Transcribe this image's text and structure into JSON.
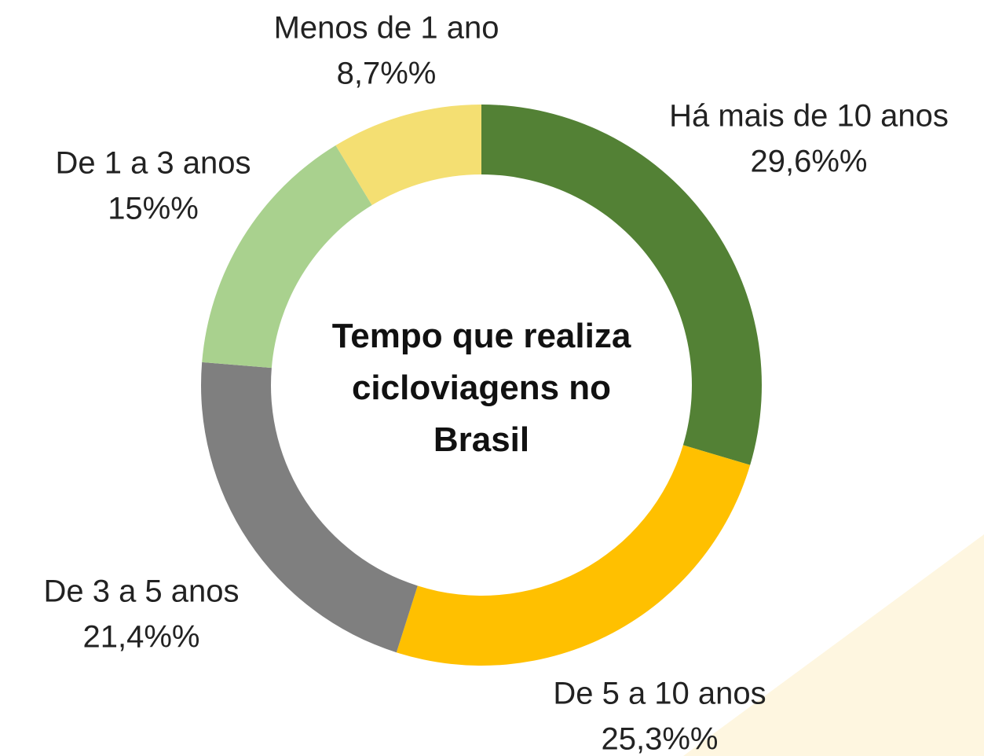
{
  "chart_data": {
    "type": "donut",
    "title": "Tempo que realiza cicloviagens no Brasil",
    "categories": [
      "Há mais de 10 anos",
      "De 5 a 10 anos",
      "De 3 a 5 anos",
      "De 1 a 3 anos",
      "Menos de 1 ano"
    ],
    "values": [
      29.6,
      25.3,
      21.4,
      15,
      8.7
    ],
    "value_labels": [
      "29,6%%",
      "25,3%%",
      "21,4%%",
      "15%%",
      "8,7%%"
    ],
    "colors": [
      "#538135",
      "#ffc000",
      "#7f7f7f",
      "#a9d18e",
      "#f4df72"
    ]
  }
}
